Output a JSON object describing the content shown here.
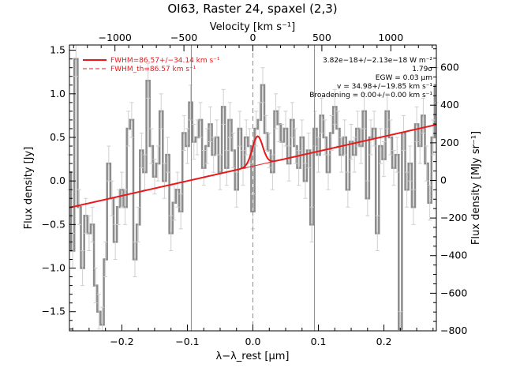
{
  "chart_data": {
    "type": "line",
    "title": "OI63, Raster 24, spaxel (2,3)",
    "xlabel": "λ−λ_rest [μm]",
    "ylabel": "Flux density [Jy]",
    "x2label": "Velocity [km s⁻¹]",
    "y2label": "Flux density [MJy sr⁻¹]",
    "xlim": [
      -0.28,
      0.28
    ],
    "ylim": [
      -1.72,
      1.56
    ],
    "x2lim": [
      -1330,
      1330
    ],
    "y2lim": [
      -800,
      720
    ],
    "x_ticks": [
      -0.2,
      -0.1,
      0.0,
      0.1,
      0.2
    ],
    "x_tick_labels": [
      "−0.2",
      "−0.1",
      "0.0",
      "0.1",
      "0.2"
    ],
    "y_ticks": [
      -1.5,
      -1.0,
      -0.5,
      0.0,
      0.5,
      1.0,
      1.5
    ],
    "y_tick_labels": [
      "−1.5",
      "−1.0",
      "−0.5",
      "0.0",
      "0.5",
      "1.0",
      "1.5"
    ],
    "x2_ticks": [
      -1000,
      -500,
      0,
      500,
      1000
    ],
    "x2_tick_labels": [
      "−1000",
      "−500",
      "0",
      "500",
      "1000"
    ],
    "y2_ticks": [
      -800,
      -600,
      -400,
      -200,
      0,
      200,
      400,
      600
    ],
    "y2_tick_labels": [
      "−800",
      "−600",
      "−400",
      "−200",
      "0",
      "200",
      "400",
      "600"
    ],
    "vlines_solid": [
      -0.094,
      0.094
    ],
    "vlines_dashed": [
      0.0
    ],
    "legend": [
      {
        "label": "FWHM=86.57+/−34.14 km s⁻¹",
        "style": "solid",
        "color": "#e8191b"
      },
      {
        "label": "FWHM_th=86.57 km s⁻¹",
        "style": "dashed",
        "color": "#e8191b"
      }
    ],
    "annotations": [
      "3.82e−18+/−2.13e−18 W m⁻²",
      "1.79σ",
      "EGW = 0.03 μm",
      "v = 34.98+/−19.85 km s⁻¹",
      "Broadening = 0.00+/−0.00 km s⁻¹"
    ],
    "continuum": {
      "slope": 1.7,
      "intercept": 0.17
    },
    "line_fit": {
      "center": 0.007,
      "amplitude": 0.33,
      "sigma": 0.008
    },
    "series": [
      {
        "name": "data",
        "color": "#8c8c8c",
        "x": [
          -0.28,
          -0.275,
          -0.27,
          -0.265,
          -0.26,
          -0.255,
          -0.25,
          -0.245,
          -0.24,
          -0.235,
          -0.23,
          -0.225,
          -0.22,
          -0.215,
          -0.21,
          -0.205,
          -0.2,
          -0.195,
          -0.19,
          -0.185,
          -0.18,
          -0.175,
          -0.17,
          -0.165,
          -0.16,
          -0.155,
          -0.15,
          -0.145,
          -0.14,
          -0.135,
          -0.13,
          -0.125,
          -0.12,
          -0.115,
          -0.11,
          -0.105,
          -0.1,
          -0.095,
          -0.09,
          -0.085,
          -0.08,
          -0.075,
          -0.07,
          -0.065,
          -0.06,
          -0.055,
          -0.05,
          -0.045,
          -0.04,
          -0.035,
          -0.03,
          -0.025,
          -0.02,
          -0.015,
          -0.01,
          -0.005,
          0.0,
          0.005,
          0.01,
          0.015,
          0.02,
          0.025,
          0.03,
          0.035,
          0.04,
          0.045,
          0.05,
          0.055,
          0.06,
          0.065,
          0.07,
          0.075,
          0.08,
          0.085,
          0.09,
          0.095,
          0.1,
          0.105,
          0.11,
          0.115,
          0.12,
          0.125,
          0.13,
          0.135,
          0.14,
          0.145,
          0.15,
          0.155,
          0.16,
          0.165,
          0.17,
          0.175,
          0.18,
          0.185,
          0.19,
          0.195,
          0.2,
          0.205,
          0.21,
          0.215,
          0.22,
          0.225,
          0.23,
          0.235,
          0.24,
          0.245,
          0.25,
          0.255,
          0.26,
          0.265,
          0.27,
          0.275,
          0.28
        ],
        "y": [
          0.1,
          -0.8,
          1.4,
          -0.3,
          -1.0,
          -0.4,
          -0.6,
          -0.5,
          -1.2,
          -1.5,
          -1.65,
          -0.9,
          0.2,
          -0.2,
          -0.7,
          -0.3,
          -0.1,
          -0.3,
          0.6,
          0.7,
          -0.9,
          -0.5,
          0.35,
          0.1,
          1.15,
          0.4,
          0.05,
          0.2,
          0.8,
          0.0,
          0.3,
          -0.6,
          -0.25,
          -0.1,
          -0.35,
          0.55,
          0.4,
          0.9,
          0.45,
          0.5,
          0.7,
          0.15,
          0.4,
          0.65,
          0.3,
          0.5,
          0.1,
          0.85,
          0.15,
          0.7,
          0.35,
          -0.1,
          0.6,
          0.15,
          0.5,
          0.4,
          -0.35,
          0.6,
          0.7,
          1.1,
          0.55,
          0.35,
          0.1,
          0.8,
          0.65,
          0.45,
          0.6,
          0.2,
          0.7,
          0.4,
          0.15,
          0.5,
          0.0,
          0.35,
          -0.5,
          0.6,
          0.3,
          0.75,
          0.5,
          0.1,
          0.55,
          0.85,
          0.6,
          0.3,
          0.5,
          -0.1,
          0.45,
          0.3,
          0.6,
          0.4,
          0.8,
          -0.2,
          0.5,
          0.6,
          -0.6,
          0.4,
          0.25,
          0.8,
          0.5,
          0.15,
          0.3,
          -1.7,
          0.55,
          -0.1,
          0.2,
          -0.3,
          0.65,
          0.4,
          0.75,
          0.2,
          -0.25,
          0.5,
          1.1
        ],
        "error": 0.2
      }
    ]
  }
}
